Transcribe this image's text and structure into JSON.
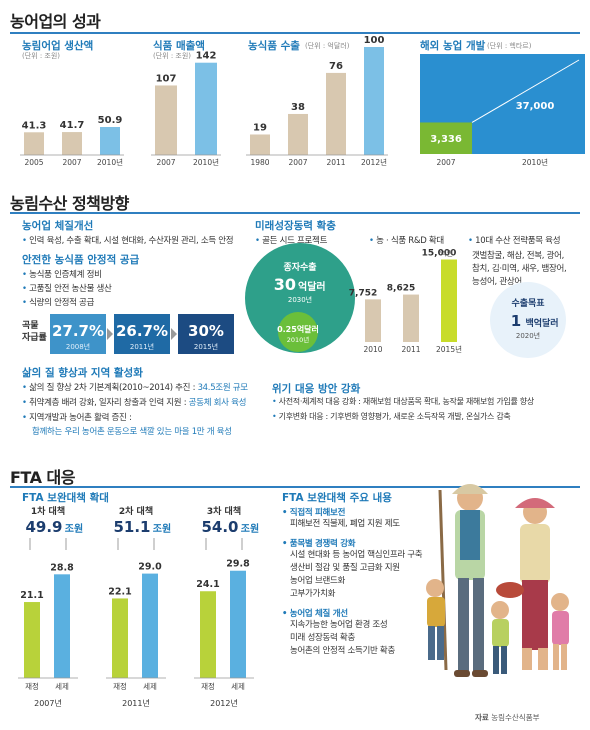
{
  "s1": {
    "title": "농어업의 성과"
  },
  "chart_data": [
    {
      "type": "bar",
      "title": "농림어업 생산액",
      "unit": "(단위 : 조원)",
      "categories": [
        "2005",
        "2007",
        "2010년"
      ],
      "values": [
        41.3,
        41.7,
        50.9
      ],
      "colors": [
        "#d8c8b0",
        "#d8c8b0",
        "#7cc0e6"
      ]
    },
    {
      "type": "bar",
      "title": "식품 매출액",
      "unit": "(단위 : 조원)",
      "categories": [
        "2007",
        "2010년"
      ],
      "values": [
        107,
        142
      ],
      "colors": [
        "#d8c8b0",
        "#7cc0e6"
      ]
    },
    {
      "type": "bar",
      "title": "농식품 수출",
      "unit": "(단위 : 억달러)",
      "categories": [
        "1980",
        "2007",
        "2011",
        "2012년"
      ],
      "values": [
        19,
        38,
        76,
        100
      ],
      "colors": [
        "#d8c8b0",
        "#d8c8b0",
        "#d8c8b0",
        "#7cc0e6"
      ]
    },
    {
      "type": "area",
      "title": "해외 농업 개발",
      "unit": "(단위 : 헥타르)",
      "categories": [
        "2007",
        "2010년"
      ],
      "values": [
        3336,
        37000
      ],
      "value_labels": [
        "3,336",
        "37,000"
      ]
    },
    {
      "type": "bar",
      "title": "미래성장동력 확충",
      "categories": [
        "2010",
        "2011",
        "2015년"
      ],
      "values": [
        7752,
        8625,
        15000
      ],
      "value_labels": [
        "7,752",
        "8,625",
        "15,000"
      ],
      "value_unit": "억원",
      "colors": [
        "#d8c8b0",
        "#d8c8b0",
        "#c8dc2a"
      ]
    },
    {
      "type": "bar",
      "title": "곡물 자급률",
      "categories": [
        "2008년",
        "2011년",
        "2015년"
      ],
      "values": [
        27.7,
        26.7,
        30
      ],
      "value_labels": [
        "27.7%",
        "26.7%",
        "30%"
      ]
    },
    {
      "type": "bar",
      "title": "FTA 보완대책 확대",
      "groups": [
        {
          "label": "1차 대책",
          "total": "49.9",
          "total_unit": "조원",
          "year": "2007년",
          "series": [
            {
              "name": "재정",
              "value": 21.1
            },
            {
              "name": "세제",
              "value": 28.8
            }
          ]
        },
        {
          "label": "2차 대책",
          "total": "51.1",
          "total_unit": "조원",
          "year": "2011년",
          "series": [
            {
              "name": "재정",
              "value": 22.1
            },
            {
              "name": "세제",
              "value": 29.0
            }
          ]
        },
        {
          "label": "3차 대책",
          "total": "54.0",
          "total_unit": "조원",
          "year": "2012년",
          "series": [
            {
              "name": "재정",
              "value": 24.1
            },
            {
              "name": "세제",
              "value": 29.8
            }
          ]
        }
      ]
    }
  ],
  "s2": {
    "title": "농림수산 정책방향",
    "system": {
      "heading": "농어업 체질개선",
      "items": [
        "인력 육성, 수출 확대, 시설 현대화, 수산자원 관리, 소득 안정"
      ]
    },
    "safe": {
      "heading": "안전한 농식품 안정적 공급",
      "items": [
        "농식품 인증체계 정비",
        "고품질 안전 농산물 생산",
        "식량의 안정적 공급"
      ]
    },
    "grain_label1": "곡물",
    "grain_label2": "자급률",
    "future": {
      "heading": "미래성장동력 확충",
      "col1": "골든 시드 프로젝트",
      "col2": "농 · 식품 R&D 확대",
      "col3": "10대 수산 전략품목 육성",
      "species": [
        "갯벌참굴, 해삼, 전복, 광어,",
        "참치, 김·미역, 새우, 뱀장어,",
        "능성어, 관상어"
      ]
    },
    "seed": {
      "title": "종자수출",
      "big": "30",
      "big_unit": "억달러",
      "year": "2030년",
      "small": "0.25",
      "small_unit": "억달러",
      "small_year": "2010년"
    },
    "export_target": {
      "title": "수출목표",
      "value": "1",
      "unit": "백억달러",
      "year": "2020년"
    },
    "life": {
      "heading": "삶의 질 향상과 지역 활성화",
      "items": [
        {
          "pre": "삶의 질 향상 2차 기본계획(2010~2014) 추진 : ",
          "hl": "34.5조원 규모"
        },
        {
          "pre": "취약계층 배려 강화, 일자리 창출과 인력 지원 : ",
          "hl": "공동체 회사 육성"
        },
        {
          "pre": "지역개발과 농어촌 활력 증진 :",
          "hl": ""
        }
      ],
      "last_line": "함께하는 우리 농어촌 운동으로 색깔 있는 마을 1만 개 육성"
    },
    "crisis": {
      "heading": "위기 대응 방안 강화",
      "items": [
        "사전적·체계적 대응 강화 : 재해보험 대상품목 확대, 농작물 재해보험 가입률 향상",
        "기후변화 대응 : 기후변화 영향평가, 새로운 소득작목 개발, 온실가스 감축"
      ]
    }
  },
  "s3": {
    "title": "FTA 대응",
    "main": {
      "heading": "FTA 보완대책 주요 내용",
      "groups": [
        {
          "heading": "직접적 피해보전",
          "lines": [
            "피해보전 직불제, 폐업 지원 제도"
          ]
        },
        {
          "heading": "품목별 경쟁력 강화",
          "lines": [
            "시설 현대화 등 농어업 핵심인프라 구축",
            "생산비 절감 및 품질 고급화 지원",
            "농어업 브랜드화",
            "고부가가치화"
          ]
        },
        {
          "heading": "농어업 체질 개선",
          "lines": [
            "지속가능한 농어업 환경 조성",
            "미래 성장동력 확충",
            "농어촌의 안정적 소득기반 확충"
          ]
        }
      ]
    },
    "source": "자료",
    "source_name": "농림수산식품부"
  }
}
